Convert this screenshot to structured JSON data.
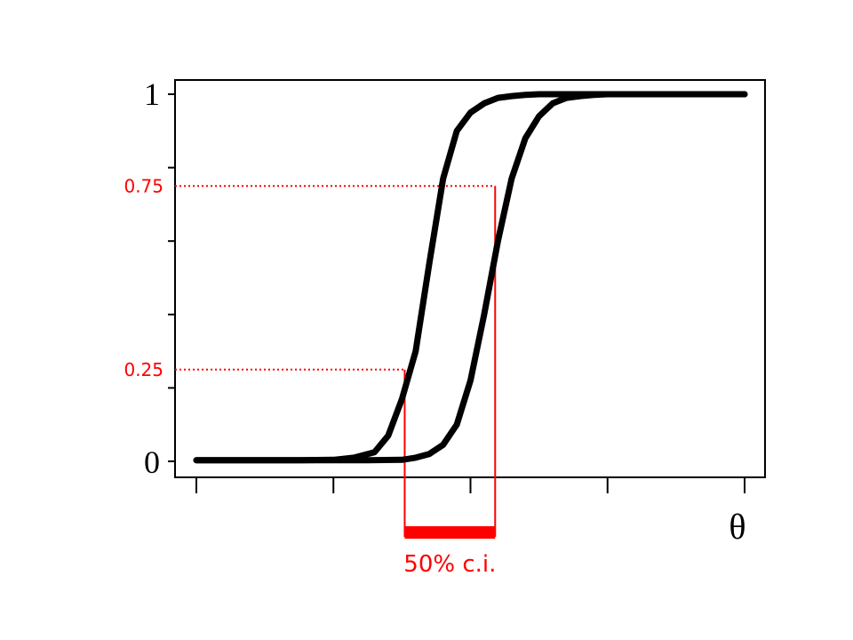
{
  "chart_data": {
    "type": "line",
    "title": "",
    "xlabel": "θ",
    "ylabel": "",
    "xlim": [
      0,
      4
    ],
    "ylim": [
      0,
      1
    ],
    "y_ticks": [
      0,
      0.2,
      0.4,
      0.6,
      0.8,
      1
    ],
    "y_tick_labels": {
      "0": "0",
      "1": "1"
    },
    "x_ticks": [
      0,
      1,
      2,
      3,
      4
    ],
    "grid": false,
    "series": [
      {
        "x": [
          0,
          0.25,
          0.5,
          0.75,
          1.0,
          1.15,
          1.3,
          1.4,
          1.5,
          1.6,
          1.7,
          1.8,
          1.9,
          2.0,
          2.1,
          2.2,
          2.3,
          2.4,
          2.5,
          2.6,
          2.7,
          2.8,
          3.0,
          3.25,
          3.5,
          3.75,
          4.0
        ],
        "values": [
          0.003,
          0.003,
          0.003,
          0.003,
          0.004,
          0.01,
          0.025,
          0.07,
          0.17,
          0.3,
          0.54,
          0.77,
          0.9,
          0.95,
          0.975,
          0.99,
          0.995,
          0.998,
          1.0,
          1.0,
          1.0,
          1.0,
          1.0,
          1.0,
          1.0,
          1.0,
          1.0
        ]
      },
      {
        "x": [
          0,
          0.25,
          0.5,
          0.75,
          1.0,
          1.25,
          1.5,
          1.6,
          1.7,
          1.8,
          1.9,
          2.0,
          2.1,
          2.2,
          2.3,
          2.4,
          2.5,
          2.6,
          2.7,
          2.8,
          2.9,
          3.0,
          3.25,
          3.5,
          3.75,
          4.0
        ],
        "values": [
          0.003,
          0.003,
          0.003,
          0.003,
          0.003,
          0.003,
          0.004,
          0.01,
          0.02,
          0.045,
          0.1,
          0.22,
          0.4,
          0.6,
          0.77,
          0.88,
          0.94,
          0.975,
          0.99,
          0.995,
          0.998,
          1.0,
          1.0,
          1.0,
          1.0,
          1.0
        ]
      }
    ],
    "reference_lines": [
      {
        "y": 0.75,
        "label": "0.75",
        "x_end": 2.18
      },
      {
        "y": 0.25,
        "label": "0.25",
        "x_end": 1.52
      }
    ],
    "interval": {
      "x_start": 1.52,
      "x_end": 2.18,
      "label": "50% c.i."
    },
    "colors": {
      "curve": "#000000",
      "annotation": "#ff0000"
    }
  }
}
